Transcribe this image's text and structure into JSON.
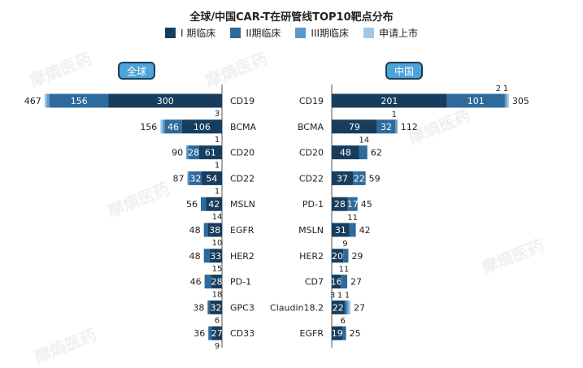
{
  "title": "全球/中国CAR-T在研管线TOP10靶点分布",
  "legend": [
    {
      "label": "I 期临床",
      "color": "#173d5e"
    },
    {
      "label": "II期临床",
      "color": "#2e6a9b"
    },
    {
      "label": "III期临床",
      "color": "#5d98cc"
    },
    {
      "label": "申请上市",
      "color": "#9fc8e8"
    }
  ],
  "watermark": "摩熵医药",
  "regions": {
    "global": "全球",
    "china": "中国"
  },
  "chart_data": [
    {
      "type": "bar",
      "orientation": "horizontal",
      "region": "全球",
      "categories": [
        "CD19",
        "BCMA",
        "CD20",
        "CD22",
        "MSLN",
        "EGFR",
        "HER2",
        "PD-1",
        "GPC3",
        "CD33"
      ],
      "series": [
        {
          "name": "I 期临床",
          "values": [
            300,
            106,
            61,
            54,
            42,
            38,
            33,
            28,
            32,
            27
          ]
        },
        {
          "name": "II期临床",
          "values": [
            156,
            46,
            28,
            32,
            14,
            10,
            15,
            18,
            6,
            9
          ]
        },
        {
          "name": "III期临床",
          "values": [
            8,
            3,
            1,
            1,
            0,
            0,
            0,
            0,
            0,
            0
          ]
        },
        {
          "name": "申请上市",
          "values": [
            3,
            1,
            0,
            0,
            0,
            0,
            0,
            0,
            0,
            0
          ]
        }
      ],
      "totals": [
        467,
        156,
        90,
        87,
        56,
        48,
        48,
        46,
        38,
        36
      ]
    },
    {
      "type": "bar",
      "orientation": "horizontal",
      "region": "中国",
      "categories": [
        "CD19",
        "BCMA",
        "CD20",
        "CD22",
        "PD-1",
        "MSLN",
        "HER2",
        "CD7",
        "Claudin18.2",
        "EGFR"
      ],
      "series": [
        {
          "name": "I 期临床",
          "values": [
            201,
            79,
            48,
            37,
            28,
            31,
            20,
            16,
            22,
            19
          ]
        },
        {
          "name": "II期临床",
          "values": [
            101,
            32,
            14,
            22,
            17,
            11,
            9,
            11,
            3,
            6
          ]
        },
        {
          "name": "III期临床",
          "values": [
            2,
            1,
            0,
            0,
            0,
            0,
            0,
            0,
            1,
            0
          ]
        },
        {
          "name": "申请上市",
          "values": [
            1,
            0,
            0,
            0,
            0,
            0,
            0,
            0,
            1,
            0
          ]
        }
      ],
      "totals": [
        305,
        112,
        62,
        59,
        45,
        42,
        29,
        27,
        27,
        25
      ]
    }
  ]
}
